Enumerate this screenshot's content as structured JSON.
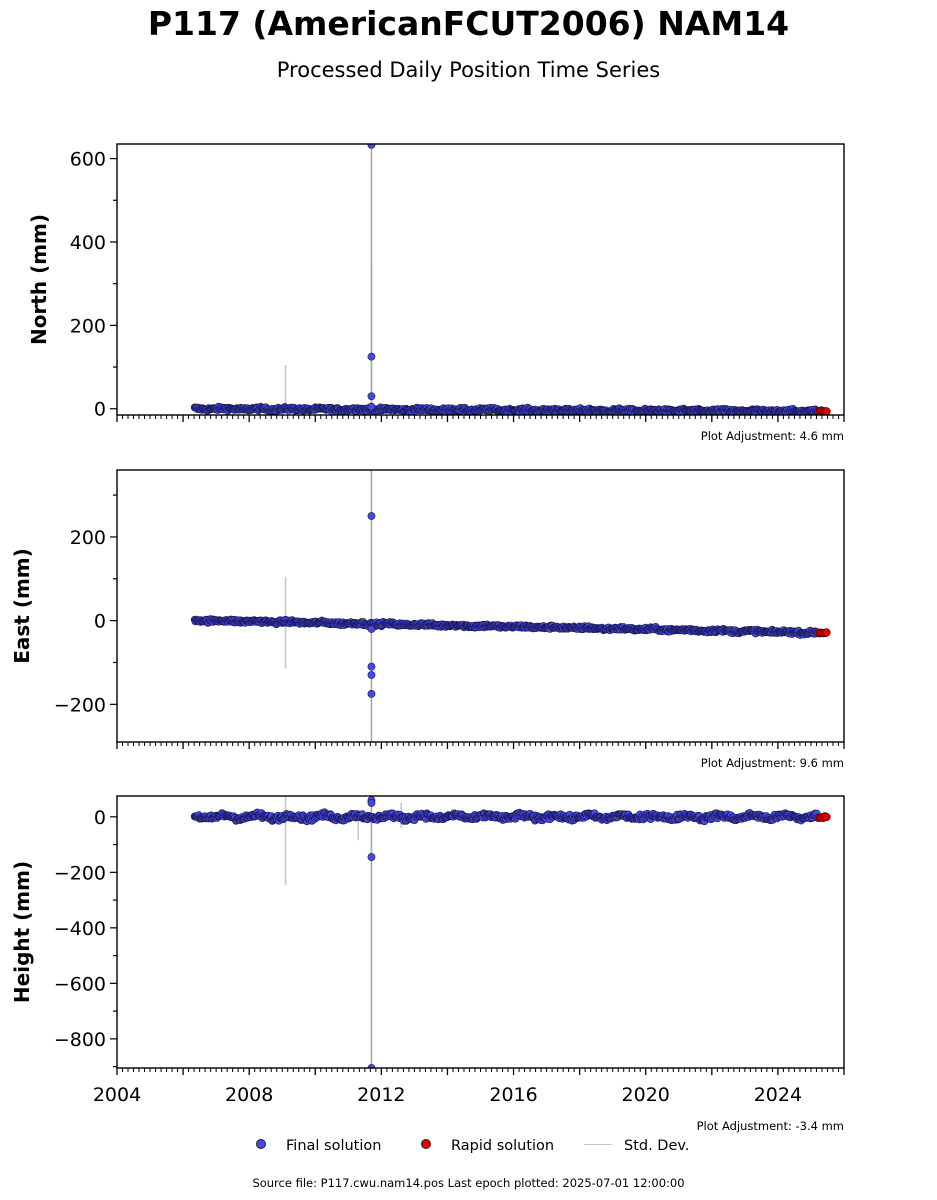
{
  "header": {
    "title": "P117 (AmericanFCUT2006) NAM14",
    "subtitle": "Processed Daily Position Time Series"
  },
  "legend": {
    "final": "Final solution",
    "rapid": "Rapid solution",
    "std": "Std. Dev."
  },
  "footer": {
    "text": "Source file: P117.cwu.nam14.pos  Last epoch plotted: 2025-07-01 12:00:00"
  },
  "colors": {
    "final": "#4848e8",
    "rapid": "#e00000",
    "std_dev": "#c8c8c8"
  },
  "chart_data": [
    {
      "type": "scatter",
      "component": "north",
      "ylabel": "North (mm)",
      "adjustment": "Plot Adjustment: 4.6 mm",
      "xlim": [
        2004.0,
        2026.0
      ],
      "ylim": [
        -15,
        635
      ],
      "yticks": [
        0,
        200,
        400,
        600
      ],
      "ytick_labels": [
        "0",
        "200",
        "400",
        "600"
      ],
      "start": 2006.35,
      "end_final": 2025.2,
      "end_rapid": 2025.5,
      "trend_start": 0,
      "trend_end": -6,
      "noise": 3,
      "outliers": [
        [
          2011.7,
          633
        ],
        [
          2011.7,
          125
        ],
        [
          2011.7,
          30
        ],
        [
          2011.7,
          5
        ]
      ],
      "std_dev_bars": [
        [
          2009.1,
          -5,
          105
        ],
        [
          2011.7,
          -10,
          345
        ],
        [
          2011.7,
          -20,
          635
        ]
      ]
    },
    {
      "type": "scatter",
      "component": "east",
      "ylabel": "East (mm)",
      "adjustment": "Plot Adjustment: 9.6 mm",
      "xlim": [
        2004.0,
        2026.0
      ],
      "ylim": [
        -290,
        360
      ],
      "yticks": [
        -200,
        0,
        200
      ],
      "ytick_labels": [
        "−200",
        "0",
        "200"
      ],
      "start": 2006.35,
      "end_final": 2025.2,
      "end_rapid": 2025.5,
      "trend_start": 1,
      "trend_end": -29,
      "noise": 3,
      "outliers": [
        [
          2011.7,
          250
        ],
        [
          2011.7,
          -20
        ],
        [
          2011.7,
          -110
        ],
        [
          2011.7,
          -130
        ],
        [
          2011.7,
          -175
        ]
      ],
      "std_dev_bars": [
        [
          2009.1,
          -115,
          105
        ],
        [
          2011.7,
          -290,
          360
        ]
      ]
    },
    {
      "type": "scatter",
      "component": "height",
      "ylabel": "Height (mm)",
      "adjustment": "Plot Adjustment: -3.4 mm",
      "xlim": [
        2004.0,
        2026.0
      ],
      "ylim": [
        -905,
        75
      ],
      "yticks": [
        -800,
        -600,
        -400,
        -200,
        0
      ],
      "ytick_labels": [
        "−800",
        "−600",
        "−400",
        "−200",
        "0"
      ],
      "xticks": [
        2004,
        2008,
        2012,
        2016,
        2020,
        2024
      ],
      "xtick_labels": [
        "2004",
        "2008",
        "2012",
        "2016",
        "2020",
        "2024"
      ],
      "start": 2006.35,
      "end_final": 2025.2,
      "end_rapid": 2025.5,
      "trend_start": 0,
      "trend_end": 0,
      "noise": 7,
      "outliers": [
        [
          2011.7,
          60
        ],
        [
          2011.7,
          50
        ],
        [
          2011.7,
          -145
        ],
        [
          2011.7,
          -905
        ]
      ],
      "std_dev_bars": [
        [
          2009.1,
          -245,
          75
        ],
        [
          2011.7,
          -905,
          75
        ],
        [
          2011.3,
          -85,
          20
        ],
        [
          2012.6,
          -40,
          50
        ]
      ]
    }
  ]
}
